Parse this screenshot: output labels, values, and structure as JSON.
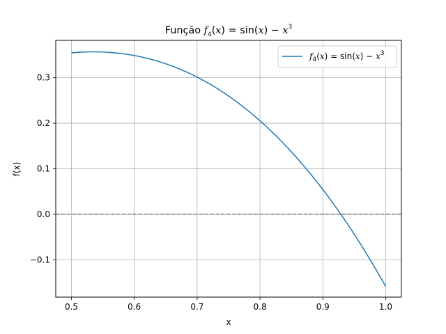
{
  "chart_data": {
    "type": "line",
    "title": {
      "prefix": "Função ",
      "f": "f",
      "sub": "4",
      "open": "(",
      "x1": "x",
      "mid": ") = sin(",
      "x2": "x",
      "minus": ") − ",
      "x3": "x",
      "sup": "3"
    },
    "xlabel": "x",
    "ylabel": "f(x)",
    "xlim": [
      0.475,
      1.025
    ],
    "ylim": [
      -0.182,
      0.382
    ],
    "x_ticks": [
      0.5,
      0.6,
      0.7,
      0.8,
      0.9,
      1.0
    ],
    "x_tick_labels": [
      "0.5",
      "0.6",
      "0.7",
      "0.8",
      "0.9",
      "1.0"
    ],
    "y_ticks": [
      -0.1,
      0.0,
      0.1,
      0.2,
      0.3
    ],
    "y_tick_labels": [
      "−0.1",
      "0.0",
      "0.1",
      "0.2",
      "0.3"
    ],
    "grid": true,
    "legend_position": "upper right",
    "series": [
      {
        "name": {
          "f": "f",
          "sub": "4",
          "open": "(",
          "x1": "x",
          "mid": ") = sin(",
          "x2": "x",
          "minus": ") − ",
          "x3": "x",
          "sup": "3"
        },
        "function": "sin(x) - x^3",
        "x_range": [
          0.5,
          1.0
        ],
        "color": "#1f77b4",
        "x": [
          0.5,
          0.55,
          0.6,
          0.65,
          0.7,
          0.75,
          0.8,
          0.85,
          0.9,
          0.95,
          1.0
        ],
        "y": [
          0.354,
          0.356,
          0.349,
          0.33,
          0.301,
          0.26,
          0.205,
          0.137,
          0.054,
          -0.044,
          -0.159
        ]
      }
    ],
    "reference_lines": [
      {
        "orientation": "horizontal",
        "y": 0.0,
        "style": "dashed",
        "color": "#808080"
      }
    ]
  }
}
